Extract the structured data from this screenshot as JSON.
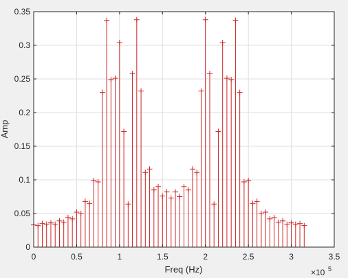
{
  "chart_data": {
    "type": "stem",
    "title": "",
    "xlabel": "Freq (Hz)",
    "ylabel": "Amp",
    "x_exponent_label": "×10",
    "x_exponent_power": "5",
    "x_scale": 100000,
    "xlim": [
      0,
      350000
    ],
    "ylim": [
      0,
      0.35
    ],
    "x_ticks": [
      0,
      50000,
      100000,
      150000,
      200000,
      250000,
      300000,
      350000
    ],
    "x_tick_labels": [
      "0",
      "0.5",
      "1",
      "1.5",
      "2",
      "2.5",
      "3",
      "3.5"
    ],
    "y_ticks": [
      0,
      0.05,
      0.1,
      0.15,
      0.2,
      0.25,
      0.3,
      0.35
    ],
    "y_tick_labels": [
      "0",
      "0.05",
      "0.1",
      "0.15",
      "0.2",
      "0.25",
      "0.3",
      "0.35"
    ],
    "grid": true,
    "marker": "+",
    "color": "#cc2222",
    "x": [
      0,
      5000,
      10000,
      15000,
      20000,
      25000,
      30000,
      35000,
      40000,
      45000,
      50000,
      55000,
      60000,
      65000,
      70000,
      75000,
      80000,
      85000,
      90000,
      95000,
      100000,
      105000,
      110000,
      115000,
      120000,
      125000,
      130000,
      135000,
      140000,
      145000,
      150000,
      155000,
      160000,
      165000,
      170000,
      175000,
      180000,
      185000,
      190000,
      195000,
      200000,
      205000,
      210000,
      215000,
      220000,
      225000,
      230000,
      235000,
      240000,
      245000,
      250000,
      255000,
      260000,
      265000,
      270000,
      275000,
      280000,
      285000,
      290000,
      295000,
      300000,
      305000,
      310000,
      315000
    ],
    "values": [
      0.033,
      0.032,
      0.035,
      0.034,
      0.036,
      0.034,
      0.039,
      0.037,
      0.044,
      0.042,
      0.052,
      0.05,
      0.068,
      0.065,
      0.099,
      0.097,
      0.23,
      0.337,
      0.249,
      0.251,
      0.304,
      0.172,
      0.064,
      0.258,
      0.338,
      0.232,
      0.111,
      0.116,
      0.085,
      0.09,
      0.076,
      0.082,
      0.073,
      0.082,
      0.075,
      0.09,
      0.085,
      0.116,
      0.111,
      0.232,
      0.338,
      0.258,
      0.064,
      0.172,
      0.304,
      0.251,
      0.249,
      0.337,
      0.23,
      0.097,
      0.099,
      0.065,
      0.068,
      0.05,
      0.052,
      0.042,
      0.044,
      0.037,
      0.039,
      0.034,
      0.036,
      0.034,
      0.035,
      0.032
    ]
  }
}
